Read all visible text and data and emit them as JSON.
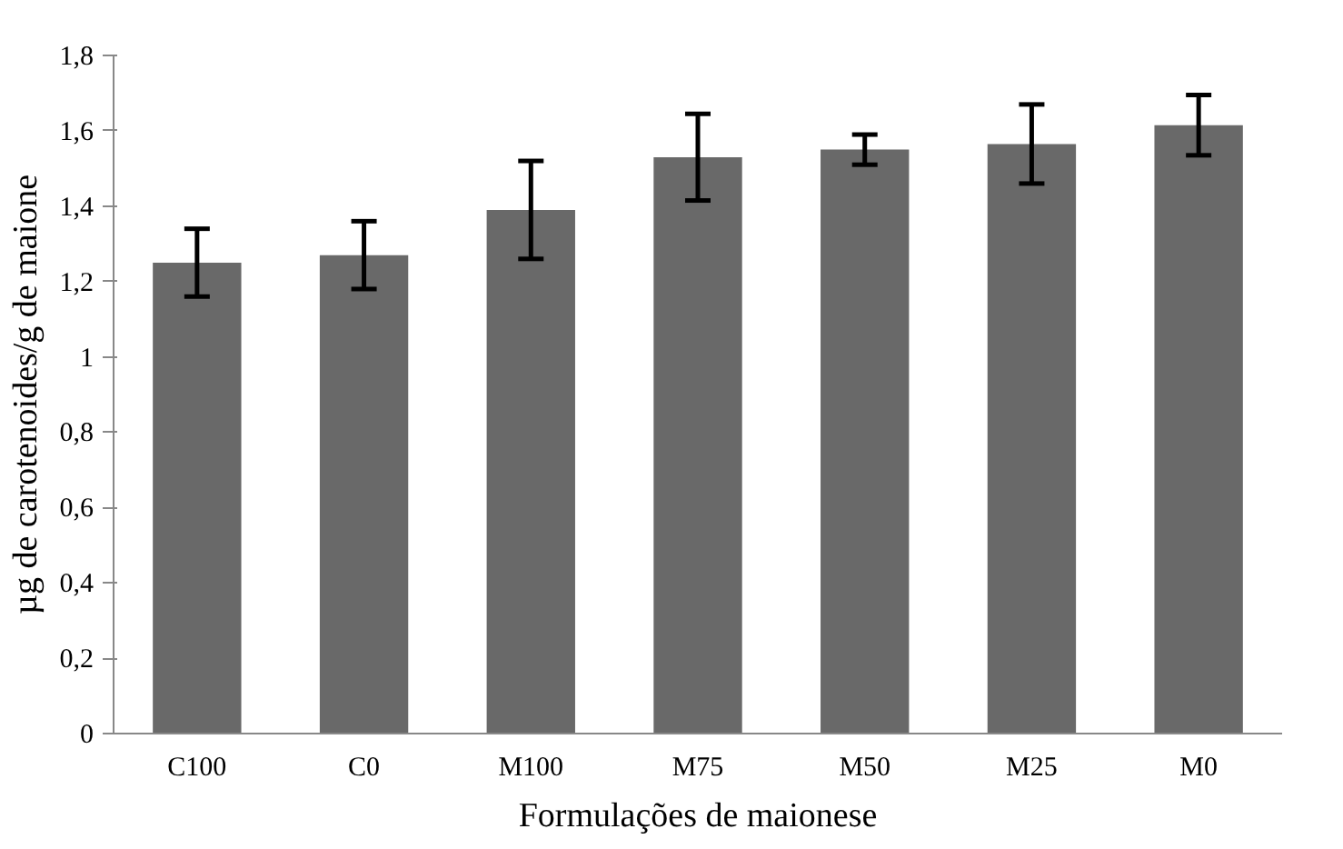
{
  "chart_data": {
    "type": "bar",
    "xlabel": "Formulações de maionese",
    "ylabel": "µg de carotenoides/g de maione",
    "categories": [
      "C100",
      "C0",
      "M100",
      "M75",
      "M50",
      "M25",
      "M0"
    ],
    "values": [
      1.25,
      1.27,
      1.39,
      1.53,
      1.55,
      1.565,
      1.615
    ],
    "errors": [
      0.09,
      0.09,
      0.13,
      0.115,
      0.04,
      0.105,
      0.08
    ],
    "color": "#696969",
    "ylim": [
      0,
      1.8
    ],
    "yticks": [
      0,
      {
        "value": 0.2,
        "label": "0,2"
      },
      {
        "value": 0.4,
        "label": "0,4"
      },
      {
        "value": 0.6,
        "label": "0,6"
      },
      {
        "value": 0.8,
        "label": "0,8"
      },
      1,
      {
        "value": 1.2,
        "label": "1,2"
      },
      {
        "value": 1.4,
        "label": "1,4"
      },
      {
        "value": 1.6,
        "label": "1,6"
      },
      {
        "value": 1.8,
        "label": "1,8"
      }
    ],
    "grid": false
  }
}
